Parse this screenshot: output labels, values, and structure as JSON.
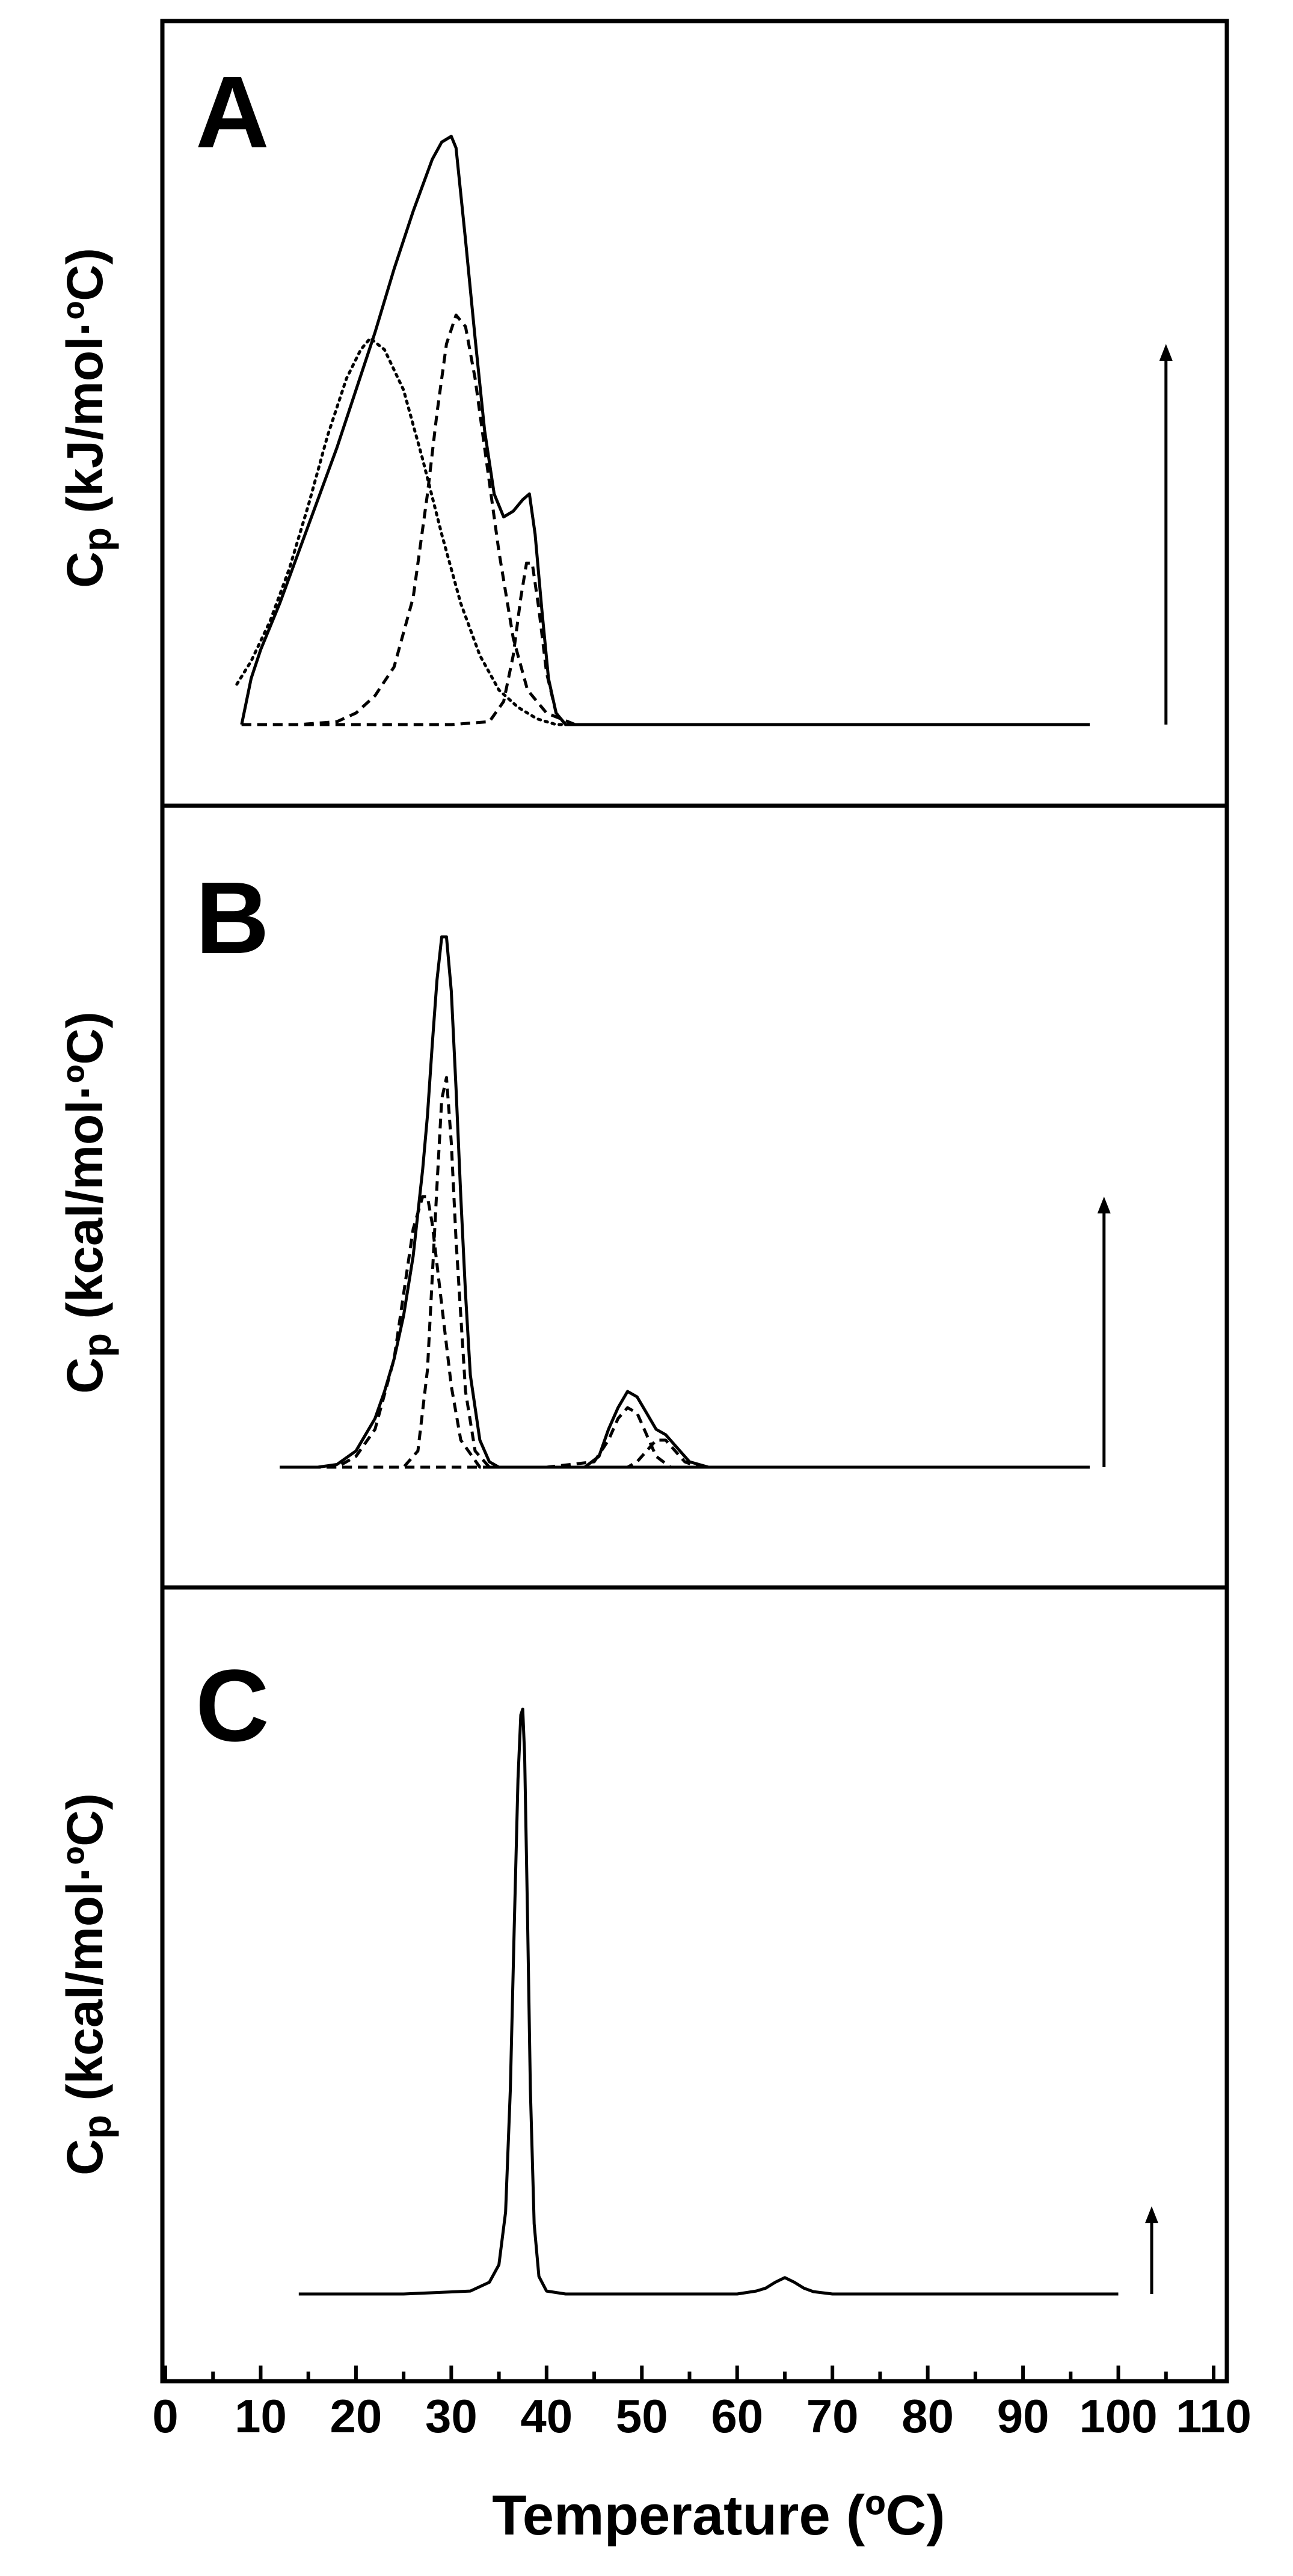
{
  "figure": {
    "x_axis_label": "Temperature (ºC)",
    "x_ticks": [
      0,
      10,
      20,
      30,
      40,
      50,
      60,
      70,
      80,
      90,
      100,
      110
    ]
  },
  "chart_data": [
    {
      "type": "line",
      "panel": "A",
      "ylabel_main": "C",
      "ylabel_sub": "p",
      "ylabel_unit": " (kJ/mol·ºC)",
      "xlim": [
        0,
        110
      ],
      "ylim": [
        0,
        1.1
      ],
      "scale_arrow": {
        "x": 105,
        "y_from": 0,
        "y_to": 0.66
      },
      "series": [
        {
          "style": "solid",
          "x": [
            8,
            9,
            10,
            12,
            14,
            16,
            18,
            20,
            22,
            24,
            26,
            28,
            29,
            30,
            30.5,
            31.5,
            32.5,
            33.5,
            34.5,
            35.5,
            36.5,
            37.5,
            38.2,
            38.8,
            39.5,
            40.2,
            41,
            42,
            44,
            50,
            60,
            70,
            80,
            90,
            97
          ],
          "y": [
            0.0,
            0.08,
            0.13,
            0.21,
            0.3,
            0.39,
            0.48,
            0.58,
            0.68,
            0.79,
            0.89,
            0.98,
            1.01,
            1.02,
            1.0,
            0.84,
            0.67,
            0.51,
            0.4,
            0.36,
            0.37,
            0.39,
            0.4,
            0.33,
            0.2,
            0.08,
            0.02,
            0.0,
            0.0,
            0.0,
            0.0,
            0.0,
            0.0,
            0.0,
            0.0
          ]
        },
        {
          "style": "dotted",
          "x": [
            7.5,
            9,
            11,
            13,
            15,
            17,
            19,
            20.5,
            21.5,
            23,
            25,
            27,
            29,
            31,
            33,
            35,
            37,
            39,
            41,
            43,
            45
          ],
          "y": [
            0.07,
            0.11,
            0.18,
            0.27,
            0.38,
            0.5,
            0.6,
            0.65,
            0.67,
            0.65,
            0.58,
            0.46,
            0.33,
            0.21,
            0.12,
            0.06,
            0.03,
            0.01,
            0.0,
            0.0,
            0.0
          ]
        },
        {
          "style": "dashed",
          "x": [
            8,
            14,
            18,
            20,
            22,
            24,
            26,
            27.5,
            28.5,
            29.5,
            30.5,
            31.5,
            32.5,
            33.5,
            35,
            36.5,
            38,
            40,
            43,
            50,
            60,
            70,
            80,
            90,
            97
          ],
          "y": [
            0.0,
            0.0,
            0.005,
            0.02,
            0.05,
            0.1,
            0.22,
            0.4,
            0.54,
            0.66,
            0.71,
            0.69,
            0.6,
            0.48,
            0.3,
            0.15,
            0.06,
            0.02,
            0.0,
            0.0,
            0.0,
            0.0,
            0.0,
            0.0,
            0.0
          ]
        },
        {
          "style": "dashed",
          "x": [
            8,
            20,
            30,
            34,
            35.5,
            36.5,
            37.3,
            37.9,
            38.5,
            39.2,
            40,
            41,
            42,
            45,
            60,
            80,
            97
          ],
          "y": [
            0.0,
            0.0,
            0.0,
            0.005,
            0.04,
            0.12,
            0.22,
            0.28,
            0.28,
            0.2,
            0.09,
            0.02,
            0.0,
            0.0,
            0.0,
            0.0,
            0.0
          ]
        }
      ]
    },
    {
      "type": "line",
      "panel": "B",
      "ylabel_main": "C",
      "ylabel_sub": "p",
      "ylabel_unit": " (kcal/mol·ºC)",
      "xlim": [
        0,
        110
      ],
      "ylim": [
        0,
        1.1
      ],
      "scale_arrow": {
        "x": 98.5,
        "y_from": 0,
        "y_to": 0.5
      },
      "series": [
        {
          "style": "solid",
          "x": [
            12,
            16,
            18,
            20,
            22,
            23,
            24,
            25,
            26,
            27,
            27.5,
            28,
            28.5,
            29,
            29.5,
            30,
            30.5,
            31,
            31.5,
            32,
            33,
            34,
            35,
            40,
            44,
            45.5,
            46.5,
            47.5,
            48.5,
            49.5,
            50.5,
            51.5,
            52.5,
            53.5,
            55,
            57,
            60,
            70,
            80,
            90,
            97
          ],
          "y": [
            0.0,
            0.0,
            0.005,
            0.03,
            0.09,
            0.14,
            0.2,
            0.28,
            0.39,
            0.55,
            0.65,
            0.78,
            0.9,
            0.98,
            0.98,
            0.88,
            0.7,
            0.5,
            0.32,
            0.17,
            0.05,
            0.01,
            0.0,
            0.0,
            0.0,
            0.02,
            0.07,
            0.11,
            0.14,
            0.13,
            0.1,
            0.07,
            0.06,
            0.04,
            0.01,
            0.0,
            0.0,
            0.0,
            0.0,
            0.0,
            0.0
          ]
        },
        {
          "style": "dashed",
          "x": [
            12,
            18,
            20,
            22,
            24,
            25,
            26,
            27,
            27.5,
            28,
            29,
            30,
            31,
            33,
            35,
            40,
            50,
            60,
            70,
            80,
            90,
            97
          ],
          "y": [
            0.0,
            0.0,
            0.02,
            0.07,
            0.2,
            0.32,
            0.44,
            0.5,
            0.5,
            0.45,
            0.3,
            0.15,
            0.05,
            0.0,
            0.0,
            0.0,
            0.0,
            0.0,
            0.0,
            0.0,
            0.0,
            0.0
          ]
        },
        {
          "style": "dashed",
          "x": [
            12,
            20,
            25,
            26.5,
            27.5,
            28.5,
            29,
            29.5,
            30,
            30.5,
            31.5,
            32.5,
            34,
            40,
            50,
            60,
            70,
            80,
            90,
            97
          ],
          "y": [
            0.0,
            0.0,
            0.0,
            0.03,
            0.18,
            0.52,
            0.68,
            0.72,
            0.6,
            0.42,
            0.14,
            0.03,
            0.0,
            0.0,
            0.0,
            0.0,
            0.0,
            0.0,
            0.0,
            0.0
          ]
        },
        {
          "style": "dashed",
          "x": [
            12,
            40,
            45,
            46.5,
            47.5,
            48.5,
            49.5,
            50.5,
            51.5,
            53,
            60,
            70,
            80,
            90,
            97
          ],
          "y": [
            0.0,
            0.0,
            0.01,
            0.05,
            0.09,
            0.11,
            0.1,
            0.06,
            0.02,
            0.0,
            0.0,
            0.0,
            0.0,
            0.0,
            0.0
          ]
        },
        {
          "style": "dashed",
          "x": [
            12,
            40,
            48.5,
            49.5,
            50.5,
            51.5,
            52.5,
            53.5,
            54.5,
            56,
            60,
            70,
            80,
            90,
            97
          ],
          "y": [
            0.0,
            0.0,
            0.0,
            0.01,
            0.03,
            0.05,
            0.05,
            0.03,
            0.01,
            0.0,
            0.0,
            0.0,
            0.0,
            0.0,
            0.0
          ]
        }
      ]
    },
    {
      "type": "line",
      "panel": "C",
      "ylabel_main": "C",
      "ylabel_sub": "p",
      "ylabel_unit": " (kcal/mol·ºC)",
      "xlim": [
        0,
        110
      ],
      "ylim": [
        0,
        1.1
      ],
      "scale_arrow": {
        "x": 103.5,
        "y_from": 0,
        "y_to": 0.15
      },
      "series": [
        {
          "style": "solid",
          "x": [
            14,
            25,
            32,
            34,
            35,
            35.7,
            36.2,
            36.6,
            37.0,
            37.3,
            37.5,
            37.7,
            38.0,
            38.3,
            38.7,
            39.2,
            40,
            42,
            50,
            60,
            62,
            63,
            64,
            65,
            66,
            67,
            68,
            70,
            80,
            90,
            100
          ],
          "y": [
            0.0,
            0.0,
            0.005,
            0.02,
            0.05,
            0.14,
            0.35,
            0.62,
            0.88,
            0.99,
            1.0,
            0.92,
            0.65,
            0.35,
            0.12,
            0.03,
            0.005,
            0.0,
            0.0,
            0.0,
            0.005,
            0.01,
            0.02,
            0.028,
            0.02,
            0.01,
            0.004,
            0.0,
            0.0,
            0.0,
            0.0
          ]
        }
      ]
    }
  ]
}
